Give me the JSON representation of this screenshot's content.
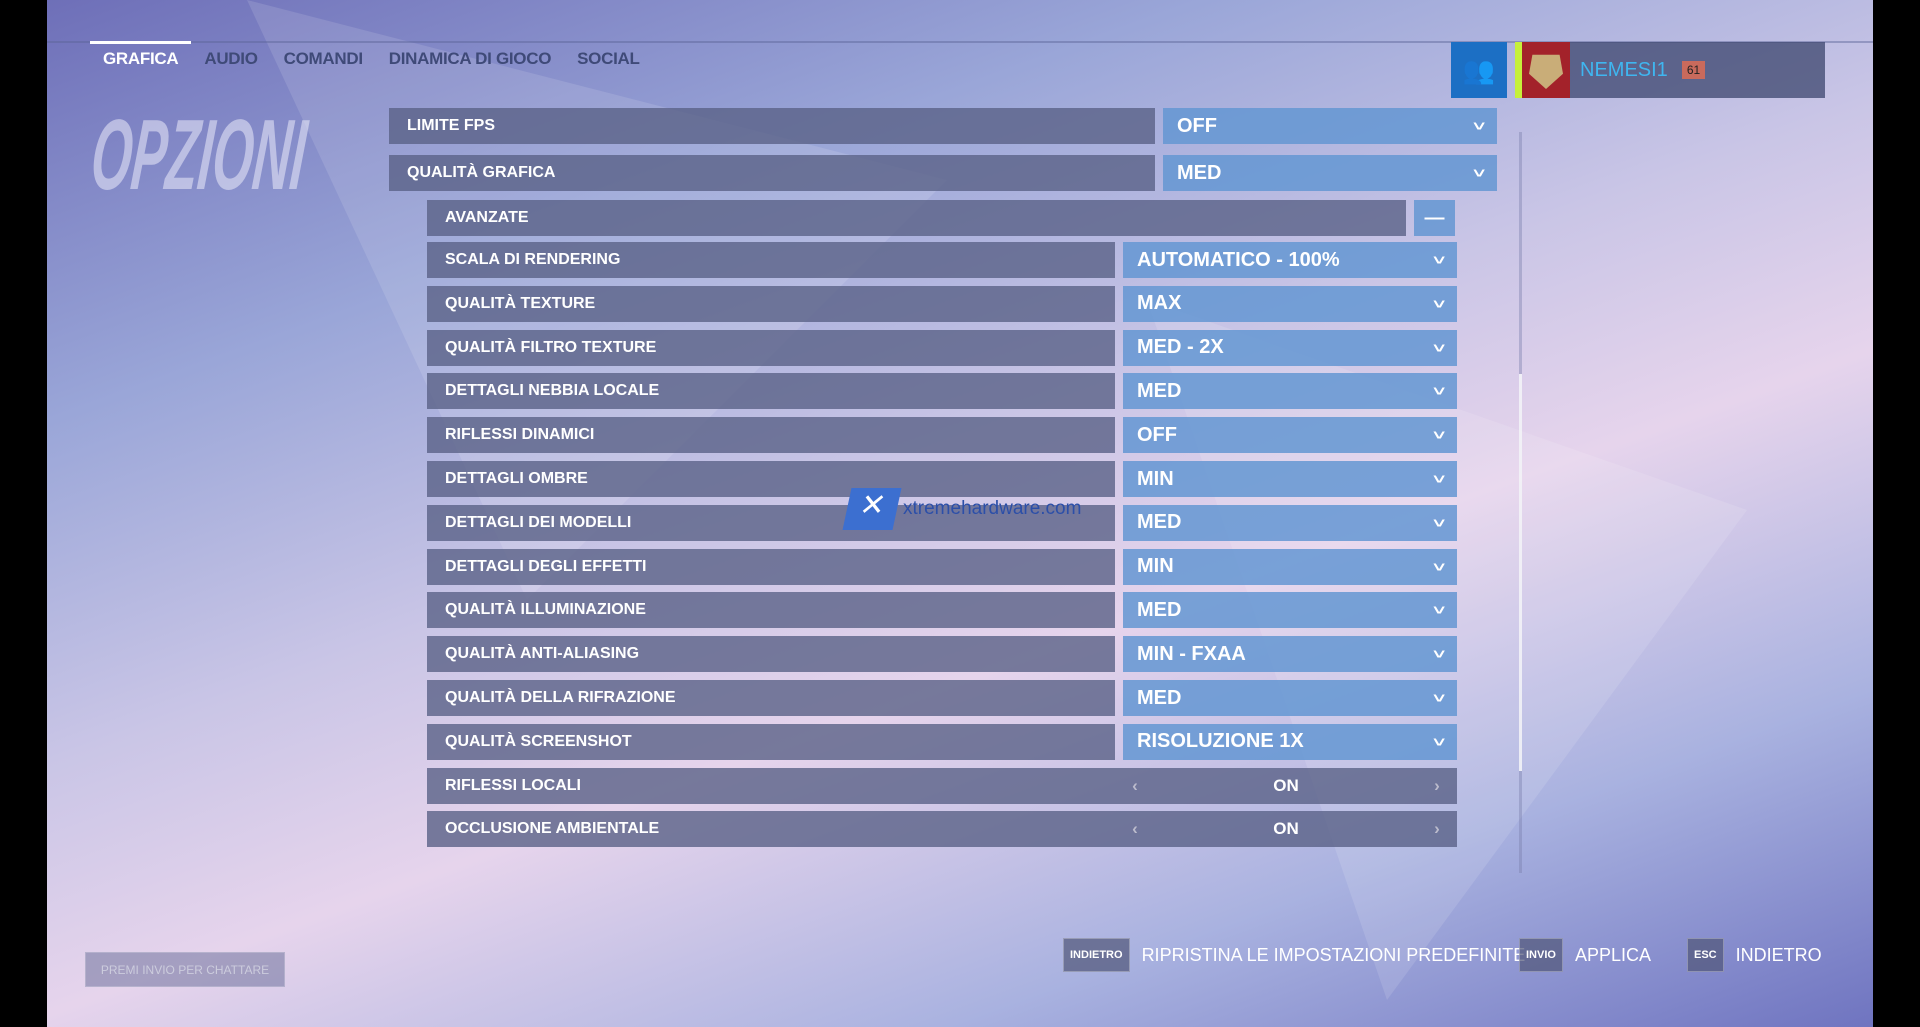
{
  "tabs": [
    {
      "label": "GRAFICA",
      "active": true
    },
    {
      "label": "AUDIO"
    },
    {
      "label": "COMANDI"
    },
    {
      "label": "DINAMICA DI GIOCO"
    },
    {
      "label": "SOCIAL"
    }
  ],
  "page_title": "OPZIONI",
  "profile": {
    "name": "NEMESI1",
    "level": "61",
    "social_icon": "group-add-icon",
    "name_color": "#3fb6f0"
  },
  "top_settings": [
    {
      "label": "LIMITE FPS",
      "value": "OFF"
    },
    {
      "label": "QUALITÀ GRAFICA",
      "value": "MED"
    }
  ],
  "advanced": {
    "label": "AVANZATE",
    "collapse_icon": "minus-icon"
  },
  "settings": [
    {
      "label": "SCALA DI RENDERING",
      "value": "AUTOMATICO - 100%"
    },
    {
      "label": "QUALITÀ TEXTURE",
      "value": "MAX"
    },
    {
      "label": "QUALITÀ FILTRO TEXTURE",
      "value": "MED - 2X"
    },
    {
      "label": "DETTAGLI NEBBIA LOCALE",
      "value": "MED"
    },
    {
      "label": "RIFLESSI DINAMICI",
      "value": "OFF"
    },
    {
      "label": "DETTAGLI OMBRE",
      "value": "MIN"
    },
    {
      "label": "DETTAGLI DEI MODELLI",
      "value": "MED"
    },
    {
      "label": "DETTAGLI DEGLI EFFETTI",
      "value": "MIN"
    },
    {
      "label": "QUALITÀ ILLUMINAZIONE",
      "value": "MED"
    },
    {
      "label": "QUALITÀ ANTI-ALIASING",
      "value": "MIN - FXAA"
    },
    {
      "label": "QUALITÀ DELLA RIFRAZIONE",
      "value": "MED"
    },
    {
      "label": "QUALITÀ SCREENSHOT",
      "value": "RISOLUZIONE 1X"
    }
  ],
  "toggles": [
    {
      "label": "RIFLESSI LOCALI",
      "value": "ON"
    },
    {
      "label": "OCCLUSIONE AMBIENTALE",
      "value": "ON"
    }
  ],
  "footer": {
    "chat": "PREMI INVIO PER CHATTARE",
    "reset_key": "INDIETRO",
    "reset": "RIPRISTINA LE IMPOSTAZIONI PREDEFINITE",
    "apply_key": "INVIO",
    "apply": "APPLICA",
    "back_key": "ESC",
    "back": "INDIETRO"
  },
  "watermark": "xtremehardware.com"
}
